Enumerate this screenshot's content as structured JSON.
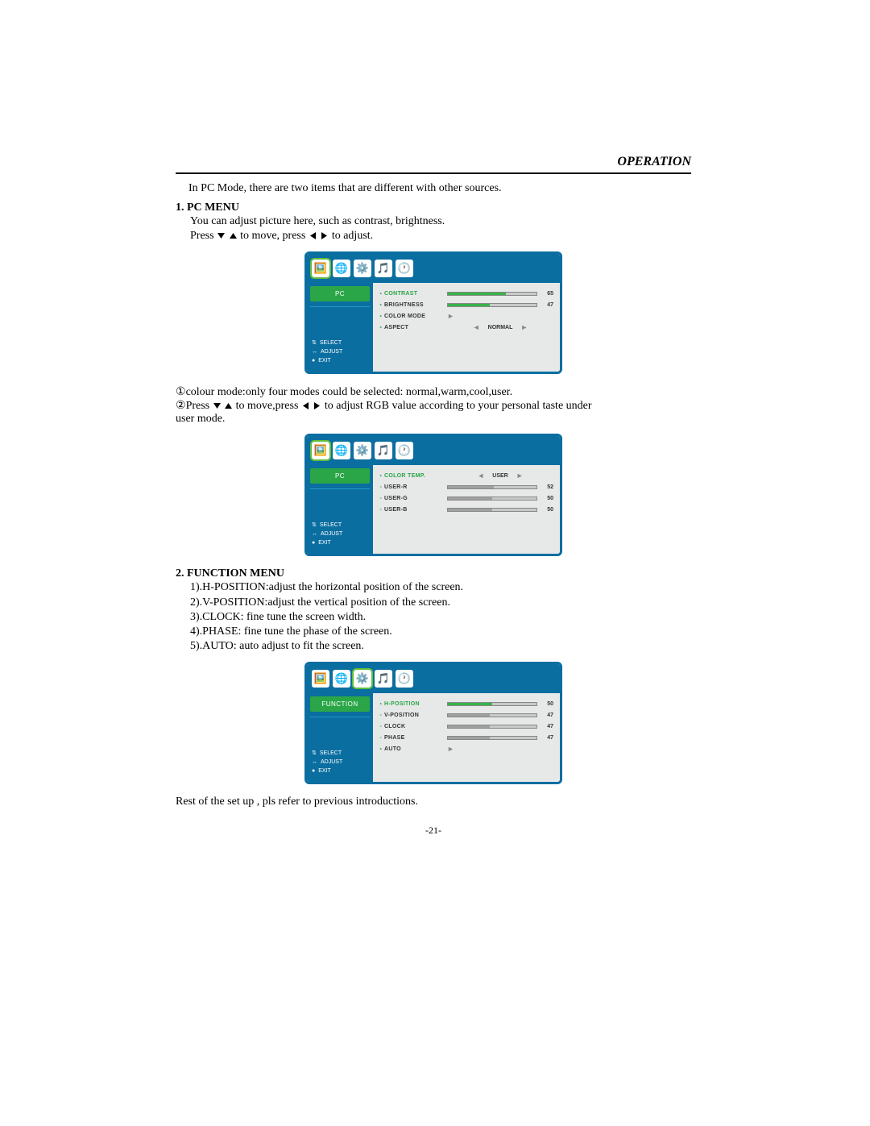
{
  "header": {
    "title": "OPERATION"
  },
  "intro": "In  PC Mode, there are two  items that are different  with other  sources.",
  "section1": {
    "title": "1. PC MENU",
    "line1": "You can adjust picture here, such as contrast, brightness.",
    "line2a": "Press ",
    "line2b": " to move, press ",
    "line2c": " to adjust."
  },
  "menu1": {
    "sideTab": "PC",
    "hints": {
      "select": "SELECT",
      "adjust": "ADJUST",
      "exit": "EXIT"
    },
    "rows": [
      {
        "label": "CONTRAST",
        "type": "bar",
        "value": 65,
        "selected": true
      },
      {
        "label": "BRIGHTNESS",
        "type": "bar",
        "value": 47,
        "selected": false
      },
      {
        "label": "COLOR MODE",
        "type": "arrow",
        "selected": false
      },
      {
        "label": "ASPECT",
        "type": "select",
        "option": "NORMAL",
        "selected": false
      }
    ]
  },
  "notes1": {
    "a": "colour mode:only four modes could be selected: normal,warm,cool,user.",
    "b1": "Press ",
    "b2": " to move,press ",
    "b3": " to adjust RGB value according to your personal taste under",
    "c": " user mode."
  },
  "menu2": {
    "sideTab": "PC",
    "hints": {
      "select": "SELECT",
      "adjust": "ADJUST",
      "exit": "EXIT"
    },
    "rows": [
      {
        "label": "COLOR TEMP.",
        "type": "select",
        "option": "USER",
        "selected": true
      },
      {
        "label": "USER-R",
        "type": "bar",
        "value": 52,
        "selected": false,
        "muted": true
      },
      {
        "label": "USER-G",
        "type": "bar",
        "value": 50,
        "selected": false,
        "muted": true
      },
      {
        "label": "USER-B",
        "type": "bar",
        "value": 50,
        "selected": false,
        "muted": true
      }
    ]
  },
  "section2": {
    "title": "2.  FUNCTION MENU",
    "items": [
      "1).H-POSITION:adjust the horizontal position of the screen.",
      "2).V-POSITION:adjust the vertical position of the screen.",
      "3).CLOCK: fine tune the screen width.",
      "4).PHASE: fine tune the phase of  the screen.",
      "5).AUTO: auto adjust to fit the screen."
    ]
  },
  "menu3": {
    "sideTab": "FUNCTION",
    "hints": {
      "select": "SELECT",
      "adjust": "ADJUST",
      "exit": "EXIT"
    },
    "rows": [
      {
        "label": "H-POSITION",
        "type": "bar",
        "value": 50,
        "selected": true
      },
      {
        "label": "V-POSITION",
        "type": "bar",
        "value": 47,
        "selected": false,
        "muted": true
      },
      {
        "label": "CLOCK",
        "type": "bar",
        "value": 47,
        "selected": false,
        "muted": true
      },
      {
        "label": "PHASE",
        "type": "bar",
        "value": 47,
        "selected": false,
        "muted": true
      },
      {
        "label": "AUTO",
        "type": "arrow",
        "selected": false
      }
    ]
  },
  "closing": "Rest of the set up , pls  refer to previous introductions.",
  "pageNum": "-21-",
  "icons": [
    "🖼️",
    "🌐",
    "⚙️",
    "🎵",
    "🕐"
  ],
  "colors": {
    "accent": "#0b6ea0",
    "green": "#2aa648",
    "panel": "#e7e8e8"
  }
}
